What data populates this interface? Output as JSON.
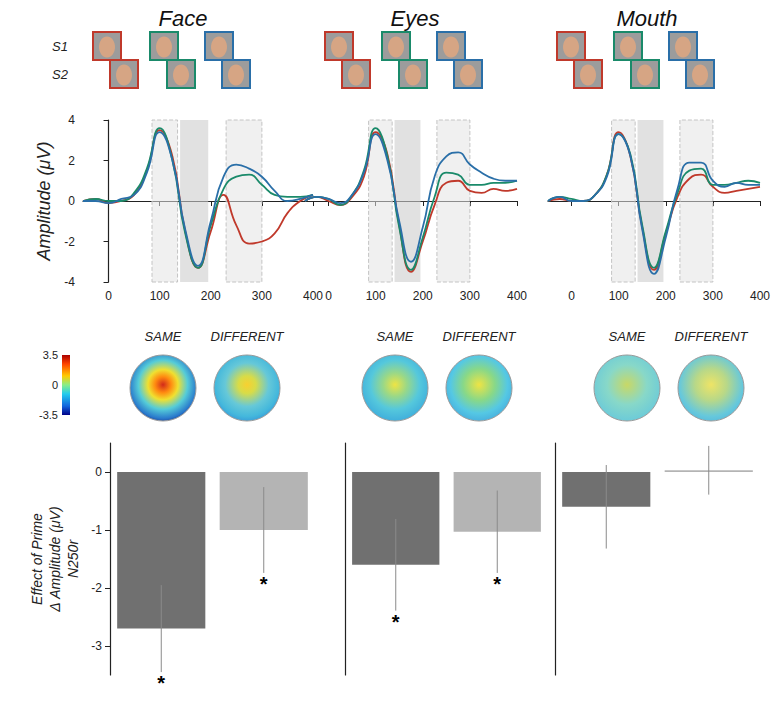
{
  "chart_data": [
    {
      "type": "line",
      "title": "Face",
      "y_label": "Amplitude (μV)",
      "tick_labels": true,
      "x": [
        -50,
        -25,
        0,
        25,
        50,
        75,
        100,
        125,
        150,
        175,
        200,
        225,
        250,
        275,
        300,
        325,
        350,
        375,
        400
      ],
      "xlim": [
        -50,
        400
      ],
      "xticks": [
        0,
        100,
        200,
        300,
        400
      ],
      "ylim": [
        -4,
        4
      ],
      "yticks": [
        -4,
        -2,
        0,
        2,
        4
      ],
      "windows": [
        [
          85,
          135
        ],
        [
          140,
          195
        ],
        [
          230,
          300
        ]
      ],
      "series": [
        {
          "color": "#c0392b",
          "values": [
            0,
            0.1,
            -0.1,
            0,
            0.3,
            1.5,
            3.5,
            2.2,
            -1.5,
            -3.3,
            -1.5,
            0.3,
            -1.2,
            -2.1,
            -2.0,
            -1.6,
            -0.6,
            0,
            0.3
          ]
        },
        {
          "color": "#1a8a6a",
          "values": [
            0,
            0.1,
            0,
            0,
            0.4,
            1.6,
            3.6,
            2.0,
            -1.6,
            -3.3,
            -1.2,
            0.6,
            1.2,
            1.3,
            0.8,
            0.3,
            0.2,
            0.2,
            0.3
          ]
        },
        {
          "color": "#2a6fa8",
          "values": [
            0,
            0,
            -0.1,
            0.1,
            0.3,
            1.4,
            3.4,
            2.0,
            -1.4,
            -3.2,
            -1.0,
            1.2,
            1.8,
            1.6,
            1.2,
            0.5,
            0,
            0.1,
            0.3
          ]
        }
      ]
    },
    {
      "type": "line",
      "title": "Eyes",
      "tick_labels": "x",
      "x": [
        -50,
        -25,
        0,
        25,
        50,
        75,
        100,
        125,
        150,
        175,
        200,
        225,
        250,
        275,
        300,
        325,
        350,
        375,
        400
      ],
      "xlim": [
        -50,
        400
      ],
      "xticks": [
        0,
        100,
        200,
        300,
        400
      ],
      "ylim": [
        -4,
        4
      ],
      "yticks": [
        -4,
        -2,
        0,
        2,
        4
      ],
      "windows": [
        [
          85,
          135
        ],
        [
          140,
          195
        ],
        [
          230,
          300
        ]
      ],
      "series": [
        {
          "color": "#c0392b",
          "values": [
            0,
            0.2,
            0,
            -0.2,
            0.2,
            1.2,
            3.4,
            2.3,
            -1.2,
            -3.5,
            -2.0,
            -0.2,
            0.9,
            1.0,
            0.5,
            0.4,
            0.6,
            0.5,
            0.6
          ]
        },
        {
          "color": "#1a8a6a",
          "values": [
            0,
            0.2,
            0.1,
            -0.2,
            0.3,
            1.5,
            3.6,
            2.2,
            -1.3,
            -3.4,
            -1.8,
            0.2,
            1.4,
            1.3,
            0.8,
            0.8,
            0.9,
            0.9,
            1.0
          ]
        },
        {
          "color": "#2a6fa8",
          "values": [
            0,
            0.2,
            0.1,
            -0.1,
            0.3,
            1.4,
            3.3,
            2.0,
            -1.0,
            -3.0,
            -1.3,
            1.2,
            2.2,
            2.4,
            1.8,
            1.4,
            1.1,
            1.0,
            1.0
          ]
        }
      ]
    },
    {
      "type": "line",
      "title": "Mouth",
      "tick_labels": "x",
      "x": [
        -50,
        -25,
        0,
        25,
        50,
        75,
        100,
        125,
        150,
        175,
        200,
        225,
        250,
        275,
        300,
        325,
        350,
        375,
        400
      ],
      "xlim": [
        -50,
        400
      ],
      "xticks": [
        0,
        100,
        200,
        300,
        400
      ],
      "ylim": [
        -4,
        4
      ],
      "yticks": [
        -4,
        -2,
        0,
        2,
        4
      ],
      "windows": [
        [
          85,
          135
        ],
        [
          140,
          195
        ],
        [
          230,
          300
        ]
      ],
      "series": [
        {
          "color": "#c0392b",
          "values": [
            0,
            0.1,
            0,
            0,
            0.3,
            1.3,
            3.4,
            2.2,
            -1.3,
            -3.4,
            -1.6,
            0.2,
            1.1,
            1.3,
            0.7,
            0.4,
            0.5,
            0.6,
            0.7
          ]
        },
        {
          "color": "#1a8a6a",
          "values": [
            0,
            0.2,
            0.1,
            0,
            0.3,
            1.3,
            3.3,
            2.3,
            -1.2,
            -3.3,
            -1.5,
            0.4,
            1.5,
            1.6,
            0.8,
            0.8,
            0.9,
            1.0,
            0.9
          ]
        },
        {
          "color": "#2a6fa8",
          "values": [
            0,
            0.2,
            0,
            0,
            0.3,
            1.2,
            3.3,
            2.2,
            -1.4,
            -3.6,
            -1.8,
            0.6,
            1.9,
            1.9,
            1.0,
            0.7,
            0.9,
            0.8,
            0.8
          ]
        }
      ]
    },
    {
      "type": "bar",
      "y_label": "Effect of Prime\nΔ Amplitude (μV)\nN250r",
      "tick_labels": "y",
      "categories": [
        "SAME",
        "DIFFERENT"
      ],
      "values": [
        -2.7,
        -1.0
      ],
      "errors": [
        0.75,
        0.74
      ],
      "annotations": [
        "*",
        "*"
      ],
      "colors": [
        "#707070",
        "#b4b4b4"
      ],
      "ylim": [
        -3.5,
        0.5
      ],
      "yticks": [
        0,
        -1,
        -2,
        -3
      ]
    },
    {
      "type": "bar",
      "tick_labels": false,
      "categories": [
        "SAME",
        "DIFFERENT"
      ],
      "values": [
        -1.6,
        -1.03
      ],
      "errors": [
        0.79,
        0.71
      ],
      "annotations": [
        "*",
        "*"
      ],
      "colors": [
        "#707070",
        "#b4b4b4"
      ],
      "ylim": [
        -3.5,
        0.5
      ],
      "yticks": [
        0,
        -1,
        -2,
        -3
      ]
    },
    {
      "type": "bar",
      "tick_labels": false,
      "categories": [
        "SAME",
        "DIFFERENT"
      ],
      "values": [
        -0.6,
        0.03
      ],
      "errors": [
        0.72,
        0.42
      ],
      "annotations": [
        null,
        null
      ],
      "colors": [
        "#707070",
        "#b4b4b4"
      ],
      "ylim": [
        -3.5,
        0.5
      ],
      "yticks": [
        0,
        -1,
        -2,
        -3
      ]
    }
  ],
  "stimuli": {
    "row_labels": [
      "S1",
      "S2"
    ],
    "frame_colors": [
      "#c0392b",
      "#1a8a6a",
      "#2a6fa8"
    ]
  },
  "topomap_colorbar": {
    "range": [
      -3.5,
      3.5
    ],
    "ticks": [
      3.5,
      0,
      -3.5
    ]
  }
}
